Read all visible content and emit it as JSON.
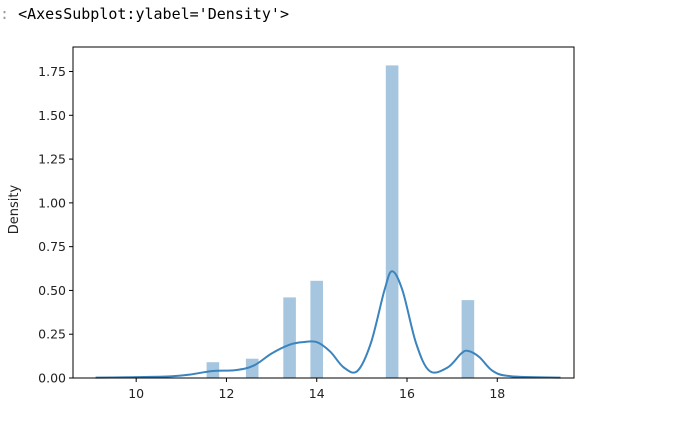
{
  "output": {
    "prompt_mark": ":",
    "repr_text": "<AxesSubplot:ylabel='Density'>"
  },
  "chart_data": {
    "type": "bar",
    "ylabel": "Density",
    "xlim": [
      8.6,
      19.7
    ],
    "ylim": [
      0,
      1.89
    ],
    "xticks": [
      10,
      12,
      14,
      16,
      18
    ],
    "yticks": [
      0.0,
      0.25,
      0.5,
      0.75,
      1.0,
      1.25,
      1.5,
      1.75
    ],
    "ytick_labels": [
      "0.00",
      "0.25",
      "0.50",
      "0.75",
      "1.00",
      "1.25",
      "1.50",
      "1.75"
    ],
    "bar_width": 0.28,
    "histogram": {
      "bin_centers": [
        11.7,
        12.57,
        13.4,
        14.0,
        15.67,
        17.35
      ],
      "densities": [
        0.09,
        0.11,
        0.46,
        0.555,
        1.785,
        0.445
      ]
    },
    "kde": {
      "x": [
        9.1,
        10.0,
        10.8,
        11.2,
        11.7,
        12.2,
        12.6,
        13.0,
        13.4,
        13.7,
        14.0,
        14.3,
        14.6,
        14.9,
        15.2,
        15.5,
        15.67,
        15.9,
        16.2,
        16.5,
        16.9,
        17.2,
        17.35,
        17.6,
        17.9,
        18.3,
        19.4
      ],
      "y": [
        0.002,
        0.005,
        0.01,
        0.02,
        0.04,
        0.045,
        0.07,
        0.14,
        0.19,
        0.205,
        0.205,
        0.15,
        0.06,
        0.04,
        0.2,
        0.5,
        0.61,
        0.5,
        0.2,
        0.04,
        0.06,
        0.14,
        0.155,
        0.12,
        0.04,
        0.01,
        0.002
      ]
    },
    "colors": {
      "bar": "#a6c6df",
      "kde": "#3b84bd"
    }
  }
}
